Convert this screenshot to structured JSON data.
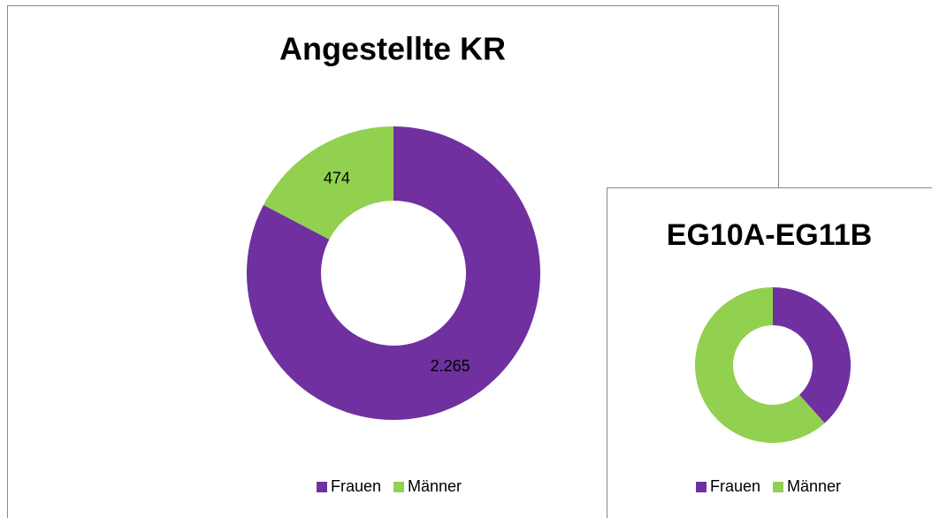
{
  "chart_data": [
    {
      "type": "donut",
      "title": "Angestellte KR",
      "categories": [
        "Frauen",
        "Männer"
      ],
      "values": [
        2265,
        474
      ],
      "value_labels": [
        "2.265",
        "474"
      ],
      "colors": [
        "#7030a0",
        "#92d050"
      ],
      "legend": "bottom"
    },
    {
      "type": "donut",
      "title": "EG10A-EG11B",
      "categories": [
        "Frauen",
        "Männer"
      ],
      "values": [
        38.4,
        61.6
      ],
      "colors": [
        "#7030a0",
        "#92d050"
      ],
      "legend": "bottom"
    }
  ]
}
